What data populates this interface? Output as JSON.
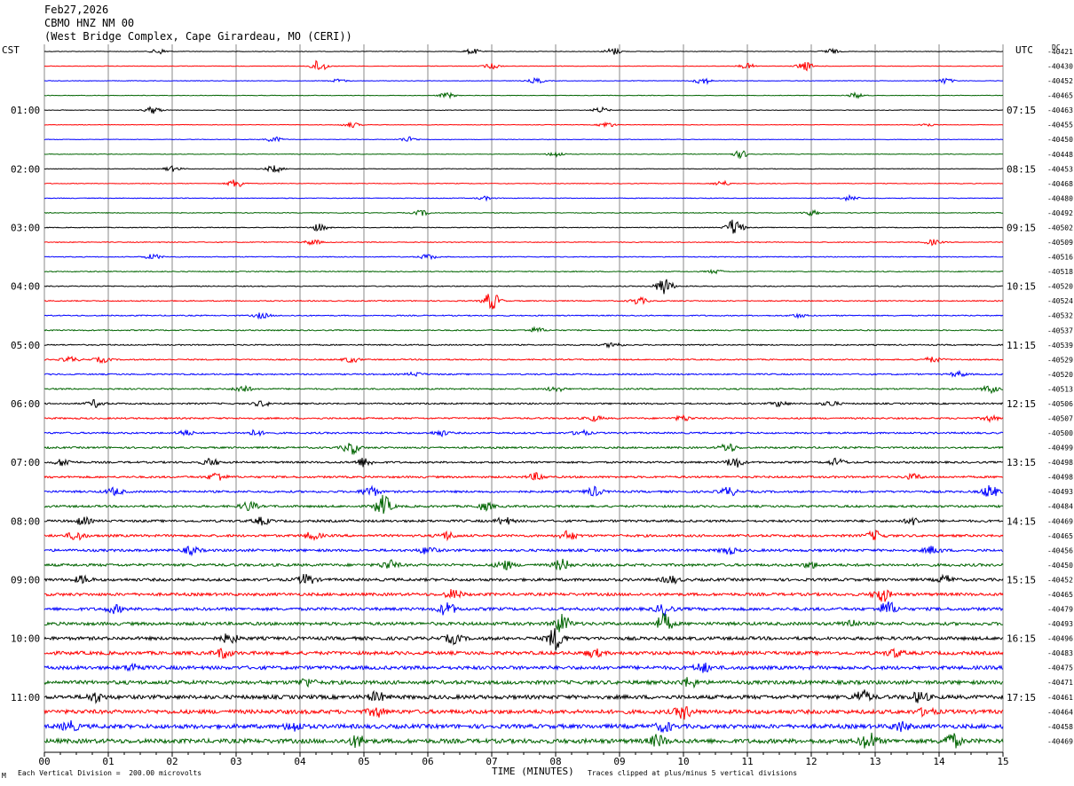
{
  "header": {
    "date": "Feb27,2026",
    "station": "CBMO HNZ NM 00",
    "location": "(West Bridge Complex, Cape Girardeau, MO (CERI))"
  },
  "left_zone": "CST",
  "right_zone": "UTC",
  "dc_label": "DC",
  "footer": {
    "scale_note": "Each Vertical Division =  200.00 microvolts",
    "clip_note": "Traces clipped at plus/minus 5 vertical divisions",
    "corner_mark": "M"
  },
  "colors": {
    "black": "#000000",
    "red": "#ff0000",
    "blue": "#0000ff",
    "green": "#006400",
    "grid": "#888888"
  },
  "chart_data": {
    "type": "line",
    "xlabel": "TIME (MINUTES)",
    "x_ticks": [
      "00",
      "01",
      "02",
      "03",
      "04",
      "05",
      "06",
      "07",
      "08",
      "09",
      "10",
      "11",
      "12",
      "13",
      "14",
      "15"
    ],
    "xlim": [
      0,
      15
    ],
    "trace_colors": [
      "#000000",
      "#ff0000",
      "#0000ff",
      "#006400"
    ],
    "left_hour_labels": [
      "01:00",
      "02:00",
      "03:00",
      "04:00",
      "05:00",
      "06:00",
      "07:00",
      "08:00",
      "09:00",
      "10:00",
      "11:00"
    ],
    "right_hour_labels": [
      "07:15",
      "08:15",
      "09:15",
      "10:15",
      "11:15",
      "12:15",
      "13:15",
      "14:15",
      "15:15",
      "16:15",
      "17:15"
    ],
    "dc_offsets": [
      "-40421",
      "-40430",
      "-40452",
      "-40465",
      "-40463",
      "-40455",
      "-40450",
      "-40448",
      "-40453",
      "-40468",
      "-40480",
      "-40492",
      "-40502",
      "-40509",
      "-40516",
      "-40518",
      "-40520",
      "-40524",
      "-40532",
      "-40537",
      "-40539",
      "-40529",
      "-40520",
      "-40513",
      "-40506",
      "-40507",
      "-40500",
      "-40499",
      "-40498",
      "-40498",
      "-40493",
      "-40484",
      "-40469",
      "-40465",
      "-40456",
      "-40450",
      "-40452",
      "-40465",
      "-40479",
      "-40493",
      "-40496",
      "-40483",
      "-40475",
      "-40471",
      "-40461",
      "-40464",
      "-40458",
      "-40469"
    ],
    "events": [
      [
        0,
        1.8,
        3
      ],
      [
        0,
        6.7,
        3
      ],
      [
        0,
        8.9,
        4
      ],
      [
        0,
        12.3,
        3
      ],
      [
        1,
        4.3,
        7
      ],
      [
        1,
        7.0,
        3
      ],
      [
        1,
        11.0,
        3
      ],
      [
        1,
        11.9,
        5
      ],
      [
        2,
        4.6,
        2
      ],
      [
        2,
        7.7,
        3
      ],
      [
        2,
        10.3,
        4
      ],
      [
        2,
        14.1,
        3
      ],
      [
        3,
        6.3,
        3
      ],
      [
        3,
        12.7,
        3
      ],
      [
        4,
        1.7,
        4
      ],
      [
        4,
        8.7,
        3
      ],
      [
        5,
        4.8,
        3
      ],
      [
        5,
        8.8,
        3
      ],
      [
        5,
        13.8,
        2
      ],
      [
        6,
        3.6,
        3
      ],
      [
        6,
        5.7,
        3
      ],
      [
        7,
        8.0,
        3
      ],
      [
        7,
        10.9,
        4
      ],
      [
        8,
        2.0,
        3
      ],
      [
        8,
        3.6,
        4
      ],
      [
        9,
        3.0,
        5
      ],
      [
        9,
        10.6,
        3
      ],
      [
        10,
        6.9,
        2
      ],
      [
        10,
        12.6,
        3
      ],
      [
        11,
        5.9,
        3
      ],
      [
        11,
        12.0,
        3
      ],
      [
        12,
        4.3,
        4
      ],
      [
        12,
        10.8,
        10
      ],
      [
        13,
        4.2,
        3
      ],
      [
        13,
        13.9,
        3
      ],
      [
        14,
        1.7,
        3
      ],
      [
        14,
        6.0,
        3
      ],
      [
        15,
        10.5,
        2
      ],
      [
        16,
        9.7,
        10
      ],
      [
        17,
        7.0,
        10
      ],
      [
        17,
        9.3,
        4
      ],
      [
        18,
        3.4,
        3
      ],
      [
        18,
        11.8,
        2
      ],
      [
        19,
        7.7,
        3
      ],
      [
        20,
        8.9,
        3
      ],
      [
        21,
        0.4,
        3
      ],
      [
        21,
        0.9,
        3
      ],
      [
        21,
        4.8,
        3
      ],
      [
        21,
        13.9,
        3
      ],
      [
        22,
        5.8,
        2
      ],
      [
        22,
        14.3,
        3
      ],
      [
        23,
        3.1,
        4
      ],
      [
        23,
        8.0,
        3
      ],
      [
        23,
        14.8,
        4
      ],
      [
        24,
        0.8,
        4
      ],
      [
        24,
        3.4,
        3
      ],
      [
        24,
        11.5,
        3
      ],
      [
        24,
        12.3,
        3
      ],
      [
        25,
        8.6,
        3
      ],
      [
        25,
        10.0,
        3
      ],
      [
        25,
        14.8,
        3
      ],
      [
        26,
        2.2,
        3
      ],
      [
        26,
        3.3,
        3
      ],
      [
        26,
        6.2,
        3
      ],
      [
        26,
        8.4,
        3
      ],
      [
        27,
        4.8,
        7
      ],
      [
        27,
        10.7,
        5
      ],
      [
        28,
        0.3,
        4
      ],
      [
        28,
        2.6,
        4
      ],
      [
        28,
        5.0,
        5
      ],
      [
        28,
        10.8,
        6
      ],
      [
        28,
        12.4,
        4
      ],
      [
        29,
        2.7,
        5
      ],
      [
        29,
        7.7,
        4
      ],
      [
        29,
        13.6,
        3
      ],
      [
        30,
        1.1,
        4
      ],
      [
        30,
        5.1,
        6
      ],
      [
        30,
        8.6,
        5
      ],
      [
        30,
        10.7,
        5
      ],
      [
        30,
        14.8,
        7
      ],
      [
        31,
        3.2,
        5
      ],
      [
        31,
        5.3,
        12
      ],
      [
        31,
        6.9,
        4
      ],
      [
        32,
        0.6,
        4
      ],
      [
        32,
        3.4,
        4
      ],
      [
        32,
        7.2,
        4
      ],
      [
        32,
        13.6,
        4
      ],
      [
        33,
        0.5,
        5
      ],
      [
        33,
        4.2,
        4
      ],
      [
        33,
        6.3,
        4
      ],
      [
        33,
        8.2,
        5
      ],
      [
        33,
        13.0,
        5
      ],
      [
        34,
        2.3,
        4
      ],
      [
        34,
        6.0,
        4
      ],
      [
        34,
        10.7,
        4
      ],
      [
        34,
        13.9,
        4
      ],
      [
        35,
        5.4,
        5
      ],
      [
        35,
        7.2,
        5
      ],
      [
        35,
        8.1,
        6
      ],
      [
        35,
        12.0,
        3
      ],
      [
        36,
        0.6,
        4
      ],
      [
        36,
        4.1,
        6
      ],
      [
        36,
        9.8,
        4
      ],
      [
        36,
        14.1,
        4
      ],
      [
        37,
        6.4,
        5
      ],
      [
        37,
        13.1,
        8
      ],
      [
        38,
        1.1,
        4
      ],
      [
        38,
        6.3,
        7
      ],
      [
        38,
        9.7,
        6
      ],
      [
        38,
        13.2,
        8
      ],
      [
        39,
        8.1,
        10
      ],
      [
        39,
        9.7,
        10
      ],
      [
        39,
        12.6,
        4
      ],
      [
        40,
        2.9,
        5
      ],
      [
        40,
        6.4,
        5
      ],
      [
        40,
        8.0,
        12
      ],
      [
        41,
        2.8,
        5
      ],
      [
        41,
        8.6,
        4
      ],
      [
        41,
        13.3,
        4
      ],
      [
        42,
        1.4,
        4
      ],
      [
        42,
        10.3,
        5
      ],
      [
        43,
        4.1,
        4
      ],
      [
        43,
        10.1,
        5
      ],
      [
        44,
        0.8,
        5
      ],
      [
        44,
        5.2,
        5
      ],
      [
        44,
        12.8,
        7
      ],
      [
        44,
        13.7,
        6
      ],
      [
        45,
        5.2,
        5
      ],
      [
        45,
        10.0,
        7
      ],
      [
        45,
        13.8,
        4
      ],
      [
        46,
        0.4,
        5
      ],
      [
        46,
        3.9,
        5
      ],
      [
        46,
        9.7,
        5
      ],
      [
        46,
        13.4,
        5
      ],
      [
        47,
        4.9,
        6
      ],
      [
        47,
        9.6,
        6
      ],
      [
        47,
        12.9,
        9
      ],
      [
        47,
        14.2,
        8
      ]
    ],
    "note_scale_uV_per_division": 200.0
  }
}
